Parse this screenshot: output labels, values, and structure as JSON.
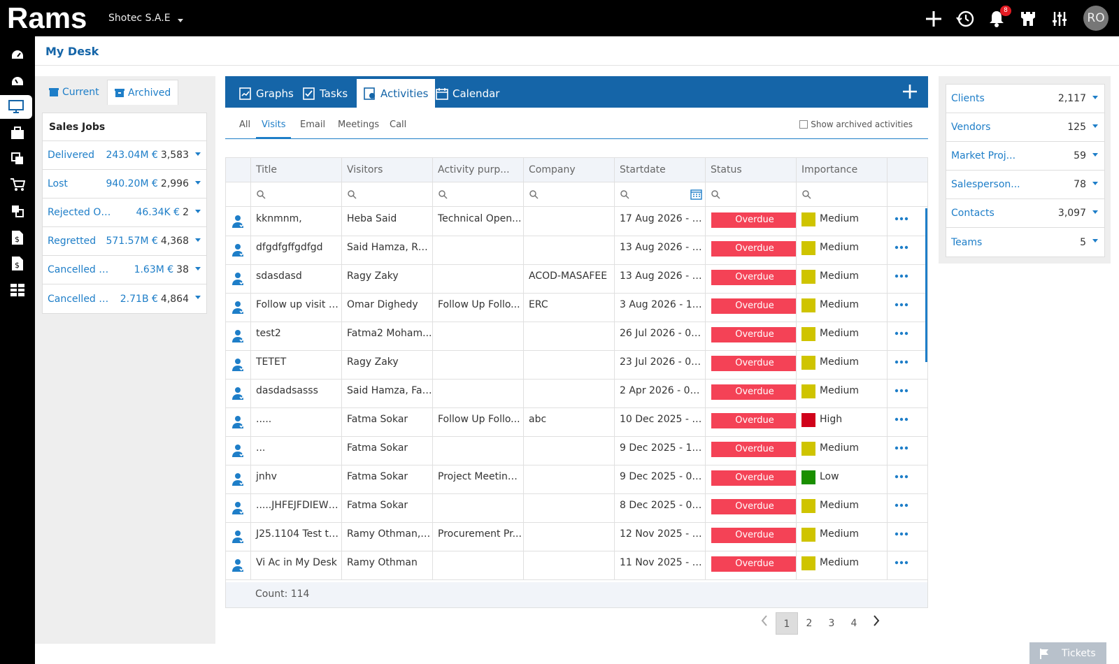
{
  "topbar": {
    "logo_text": "Rams",
    "company": "Shotec S.A.E",
    "notification_count": "8",
    "avatar_initials": "RO"
  },
  "page": {
    "title": "My Desk"
  },
  "left_panel": {
    "tabs": [
      {
        "label": "Current"
      },
      {
        "label": "Archived"
      }
    ],
    "sales_jobs": {
      "title": "Sales Jobs",
      "rows": [
        {
          "label": "Delivered",
          "amount": "243.04M €",
          "count": "3,583"
        },
        {
          "label": "Lost",
          "amount": "940.20M €",
          "count": "2,996"
        },
        {
          "label": "Rejected Or...",
          "amount": "46.34K €",
          "count": "2"
        },
        {
          "label": "Regretted",
          "amount": "571.57M €",
          "count": "4,368"
        },
        {
          "label": "Cancelled O...",
          "amount": "1.63M €",
          "count": "38"
        },
        {
          "label": "Cancelled R...",
          "amount": "2.71B €",
          "count": "4,864"
        }
      ]
    }
  },
  "center": {
    "tabs": [
      {
        "label": "Graphs"
      },
      {
        "label": "Tasks"
      },
      {
        "label": "Activities"
      },
      {
        "label": "Calendar"
      }
    ],
    "sub_tabs": [
      {
        "label": "All"
      },
      {
        "label": "Visits"
      },
      {
        "label": "Email"
      },
      {
        "label": "Meetings"
      },
      {
        "label": "Call"
      }
    ],
    "show_archived_label": "Show archived activities",
    "columns": [
      "Title",
      "Visitors",
      "Activity purp...",
      "Company",
      "Startdate",
      "Status",
      "Importance"
    ],
    "rows": [
      {
        "title": "kknmnm,",
        "visitors": "Heba Said",
        "purpose": "Technical Open...",
        "company": "",
        "startdate": "17 Aug 2026 - 1...",
        "status": "Overdue",
        "importance": "Medium"
      },
      {
        "title": "dfgdfgffgdfgd",
        "visitors": "Said Hamza, Ra...",
        "purpose": "",
        "company": "",
        "startdate": "13 Aug 2026 - 1...",
        "status": "Overdue",
        "importance": "Medium"
      },
      {
        "title": "sdasdasd",
        "visitors": "Ragy Zaky",
        "purpose": "",
        "company": "ACOD-MASAFEE",
        "startdate": "13 Aug 2026 - 1...",
        "status": "Overdue",
        "importance": "Medium"
      },
      {
        "title": "Follow up visit t...",
        "visitors": "Omar Dighedy",
        "purpose": "Follow Up Follo...",
        "company": "ERC",
        "startdate": "3 Aug 2026 - 12...",
        "status": "Overdue",
        "importance": "Medium"
      },
      {
        "title": "test2",
        "visitors": "Fatma2 Moham...",
        "purpose": "",
        "company": "",
        "startdate": "26 Jul 2026 - 02:...",
        "status": "Overdue",
        "importance": "Medium"
      },
      {
        "title": "TETET",
        "visitors": "Ragy Zaky",
        "purpose": "",
        "company": "",
        "startdate": "23 Jul 2026 - 01:...",
        "status": "Overdue",
        "importance": "Medium"
      },
      {
        "title": "dasdadsasss",
        "visitors": "Said Hamza, Fat...",
        "purpose": "",
        "company": "",
        "startdate": "2 Apr 2026 - 06:...",
        "status": "Overdue",
        "importance": "Medium"
      },
      {
        "title": ".....",
        "visitors": "Fatma Sokar",
        "purpose": "Follow Up Follo...",
        "company": "abc",
        "startdate": "10 Dec 2025 - 0...",
        "status": "Overdue",
        "importance": "High"
      },
      {
        "title": "...",
        "visitors": "Fatma Sokar",
        "purpose": "",
        "company": "",
        "startdate": "9 Dec 2025 - 10:...",
        "status": "Overdue",
        "importance": "Medium"
      },
      {
        "title": "jnhv",
        "visitors": "Fatma Sokar",
        "purpose": "Project Meeting...",
        "company": "",
        "startdate": "9 Dec 2025 - 09:...",
        "status": "Overdue",
        "importance": "Low"
      },
      {
        "title": ".....JHFEJFDIEWY...",
        "visitors": "Fatma Sokar",
        "purpose": "",
        "company": "",
        "startdate": "8 Dec 2025 - 08:...",
        "status": "Overdue",
        "importance": "Medium"
      },
      {
        "title": "J25.1104 Test th...",
        "visitors": "Ramy Othman, ...",
        "purpose": "Procurement Pr...",
        "company": "",
        "startdate": "12 Nov 2025 - 0...",
        "status": "Overdue",
        "importance": "Medium"
      },
      {
        "title": "Vi Ac in My Desk",
        "visitors": "Ramy Othman",
        "purpose": "",
        "company": "",
        "startdate": "11 Nov 2025 - 0...",
        "status": "Overdue",
        "importance": "Medium"
      }
    ],
    "count_label": "Count: 114",
    "pages": [
      "1",
      "2",
      "3",
      "4"
    ]
  },
  "right_panel": {
    "rows": [
      {
        "label": "Clients",
        "count": "2,117"
      },
      {
        "label": "Vendors",
        "count": "125"
      },
      {
        "label": "Market Proj...",
        "count": "59"
      },
      {
        "label": "Salesperson...",
        "count": "78"
      },
      {
        "label": "Contacts",
        "count": "3,097"
      },
      {
        "label": "Teams",
        "count": "5"
      }
    ]
  },
  "tickets_label": "Tickets",
  "colors": {
    "brand_blue": "#1565a8",
    "link_blue": "#1e7ec8",
    "overdue": "#f44256",
    "importance": {
      "Medium": "#cfc400",
      "High": "#d0021b",
      "Low": "#1a8f00"
    }
  }
}
